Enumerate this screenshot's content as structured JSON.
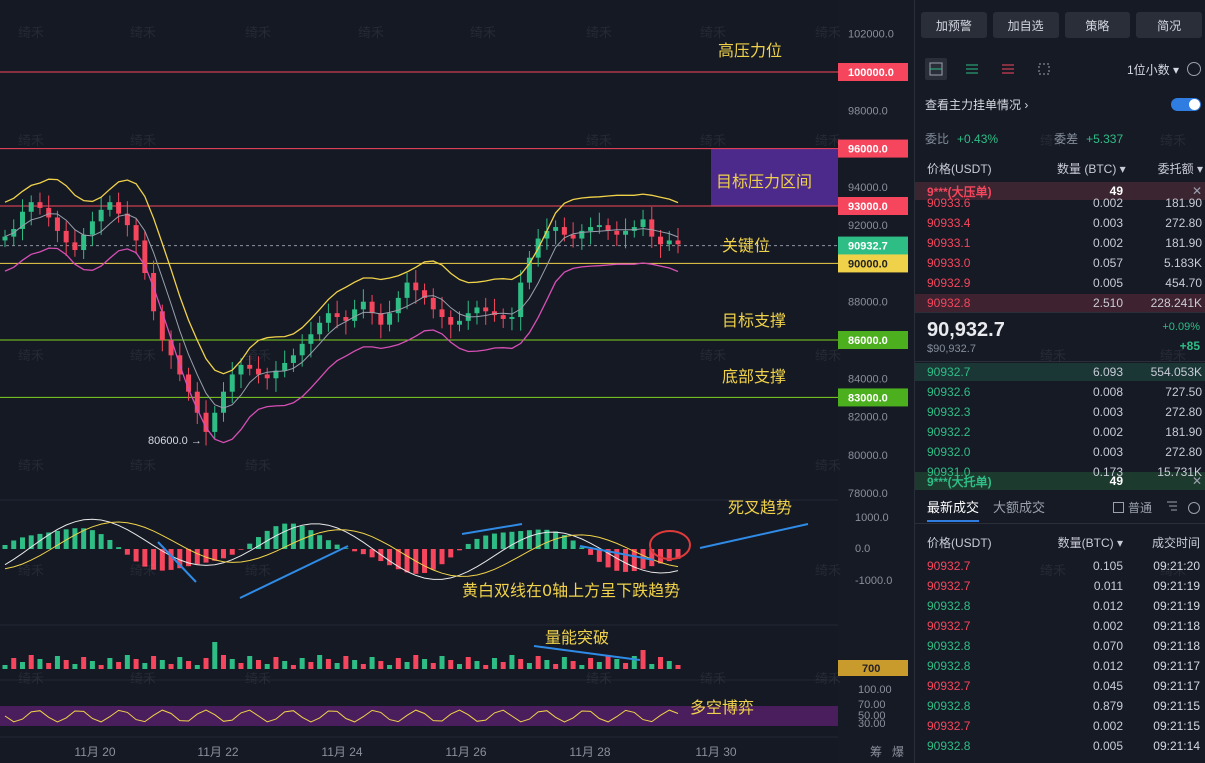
{
  "chart_data": {
    "type": "candlestick",
    "price_axis": [
      "102000.0",
      "98000.0",
      "94000.0",
      "92000.0",
      "88000.0",
      "84000.0",
      "82000.0",
      "80000.0",
      "78000.0"
    ],
    "price_labels": [
      {
        "text": "100000.0",
        "color": "#f6465d",
        "price": 100000
      },
      {
        "text": "96000.0",
        "color": "#f6465d",
        "price": 96000
      },
      {
        "text": "93000.0",
        "color": "#f6465d",
        "price": 93000
      },
      {
        "text": "90932.7",
        "color": "#2ebd85",
        "price": 90932.7
      },
      {
        "text": "90000.0",
        "color": "#f0d24a",
        "price": 90000
      },
      {
        "text": "86000.0",
        "color": "#4caf1e",
        "price": 86000
      },
      {
        "text": "83000.0",
        "color": "#4caf1e",
        "price": 83000
      }
    ],
    "levels": [
      {
        "price": 100000,
        "color": "#f6465d",
        "label": "高压力位"
      },
      {
        "price": 96000,
        "color": "#f6465d",
        "label": ""
      },
      {
        "price": 93000,
        "color": "#f6465d",
        "label": ""
      },
      {
        "price": 90932.7,
        "color": "#8e94a3",
        "label": "关键位"
      },
      {
        "price": 90000,
        "color": "#f0d24a",
        "label": ""
      },
      {
        "price": 86000,
        "color": "#7ed321",
        "label": "目标支撑"
      },
      {
        "price": 83000,
        "color": "#7ed321",
        "label": "底部支撑"
      }
    ],
    "zone": {
      "from": 93000,
      "to": 96000,
      "label": "目标压力区间"
    },
    "x_labels": [
      "11月 20",
      "11月 22",
      "11月 24",
      "11月 26",
      "11月 28",
      "11月 30"
    ],
    "low_marker": "80600.0 →",
    "macd_axis": [
      "1000.0",
      "0.0",
      "-1000.0"
    ],
    "vol_label": "700",
    "rsi_axis": [
      "100.00",
      "70.00",
      "50.00",
      "30.00"
    ],
    "close": [
      91400,
      91800,
      92700,
      93200,
      92900,
      92400,
      91700,
      91100,
      90700,
      91500,
      92200,
      92800,
      93200,
      92600,
      92000,
      91200,
      89500,
      87500,
      86000,
      85200,
      84200,
      83300,
      82200,
      81200,
      82200,
      83300,
      84200,
      84700,
      84500,
      84200,
      84000,
      84400,
      84800,
      85200,
      85800,
      86300,
      86900,
      87400,
      87200,
      87000,
      87600,
      88000,
      87400,
      86800,
      87400,
      88200,
      89000,
      88600,
      88200,
      87600,
      87200,
      86800,
      87000,
      87400,
      87700,
      87500,
      87300,
      87100,
      87200,
      89000,
      90300,
      91300,
      91700,
      91900,
      91500,
      91300,
      91700,
      91900,
      92000,
      91700,
      91500,
      91700,
      91900,
      92300,
      91400,
      91000,
      91200,
      91000
    ]
  },
  "annotations": {
    "death_cross": "死叉趋势",
    "macd_note": "黄白双线在0轴上方呈下跌趋势",
    "volume_note": "量能突破",
    "rsi_note": "多空博弈"
  },
  "bottom_right": [
    "筹",
    "爆"
  ],
  "watermark": "绮禾",
  "right_panel": {
    "buttons": [
      "加预警",
      "加自选",
      "策略",
      "简况"
    ],
    "decimal": "1位小数 ▾",
    "main_order_link": "查看主力挂单情况 ›",
    "ratio_label": "委比",
    "ratio_value": "+0.43%",
    "diff_label": "委差",
    "diff_value": "+5.337",
    "ob_headers": [
      "价格(USDT)",
      "数量 (BTC) ▾",
      "委托额 ▾"
    ],
    "big_ask": {
      "name": "9***(大压单)",
      "count": "49",
      "close": "✕"
    },
    "asks": [
      {
        "p": "90933.6",
        "q": "0.002",
        "t": "181.90"
      },
      {
        "p": "90933.4",
        "q": "0.003",
        "t": "272.80"
      },
      {
        "p": "90933.1",
        "q": "0.002",
        "t": "181.90"
      },
      {
        "p": "90933.0",
        "q": "0.057",
        "t": "5.183K"
      },
      {
        "p": "90932.9",
        "q": "0.005",
        "t": "454.70"
      },
      {
        "p": "90932.8",
        "q": "2.510",
        "t": "228.241K"
      }
    ],
    "last_price": "90,932.7",
    "last_sub": "$90,932.7",
    "change_pct": "+0.09%",
    "change_abs": "+85",
    "bids": [
      {
        "p": "90932.7",
        "q": "6.093",
        "t": "554.053K"
      },
      {
        "p": "90932.6",
        "q": "0.008",
        "t": "727.50"
      },
      {
        "p": "90932.3",
        "q": "0.003",
        "t": "272.80"
      },
      {
        "p": "90932.2",
        "q": "0.002",
        "t": "181.90"
      },
      {
        "p": "90932.0",
        "q": "0.003",
        "t": "272.80"
      },
      {
        "p": "90931.0",
        "q": "0.173",
        "t": "15.731K"
      }
    ],
    "big_bid": {
      "name": "9***(大托单)",
      "count": "49",
      "close": "✕"
    },
    "trade_tabs": [
      "最新成交",
      "大额成交"
    ],
    "trade_opt": "普通",
    "trade_headers": [
      "价格(USDT)",
      "数量(BTC) ▾",
      "成交时间"
    ],
    "trades": [
      {
        "p": "90932.7",
        "q": "0.105",
        "t": "09:21:20",
        "side": "sell"
      },
      {
        "p": "90932.7",
        "q": "0.011",
        "t": "09:21:19",
        "side": "sell"
      },
      {
        "p": "90932.8",
        "q": "0.012",
        "t": "09:21:19",
        "side": "buy"
      },
      {
        "p": "90932.7",
        "q": "0.002",
        "t": "09:21:18",
        "side": "sell"
      },
      {
        "p": "90932.8",
        "q": "0.070",
        "t": "09:21:18",
        "side": "buy"
      },
      {
        "p": "90932.8",
        "q": "0.012",
        "t": "09:21:17",
        "side": "buy"
      },
      {
        "p": "90932.7",
        "q": "0.045",
        "t": "09:21:17",
        "side": "sell"
      },
      {
        "p": "90932.8",
        "q": "0.879",
        "t": "09:21:15",
        "side": "buy"
      },
      {
        "p": "90932.7",
        "q": "0.002",
        "t": "09:21:15",
        "side": "sell"
      },
      {
        "p": "90932.8",
        "q": "0.005",
        "t": "09:21:14",
        "side": "buy"
      }
    ]
  }
}
